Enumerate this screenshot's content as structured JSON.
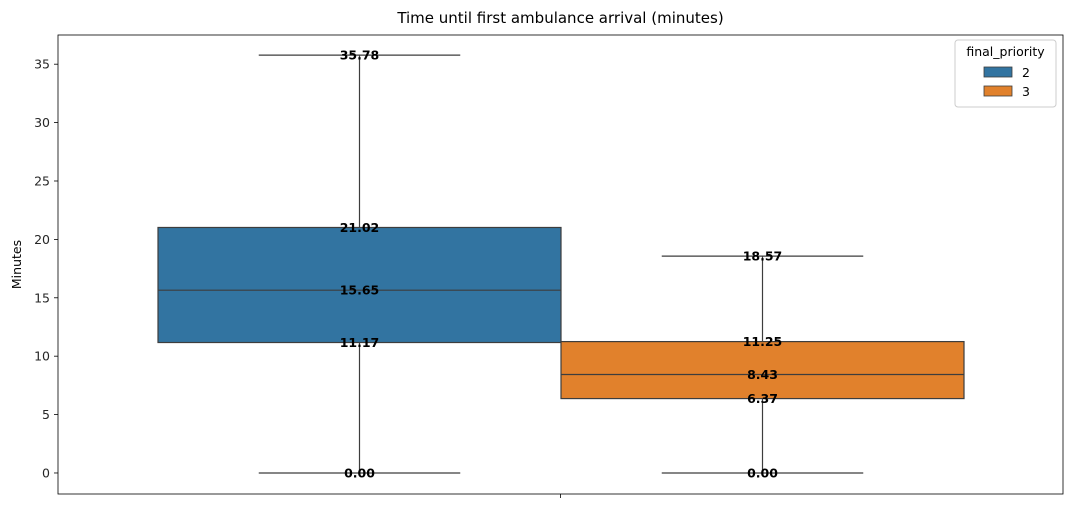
{
  "chart_data": {
    "type": "box",
    "title": "Time until first ambulance arrival (minutes)",
    "xlabel": "",
    "ylabel": "Minutes",
    "ylim": [
      -1.8,
      37.5
    ],
    "yticks": [
      0,
      5,
      10,
      15,
      20,
      25,
      30,
      35
    ],
    "grid": false,
    "legend": {
      "title": "final_priority",
      "placement": "top-right"
    },
    "series": [
      {
        "name": "2",
        "color": "#3274a1",
        "whisker_low": 0.0,
        "q1": 11.17,
        "median": 15.65,
        "q3": 21.02,
        "whisker_high": 35.78,
        "labels": [
          "35.78",
          "21.02",
          "15.65",
          "11.17",
          "0.00"
        ]
      },
      {
        "name": "3",
        "color": "#e1812c",
        "whisker_low": 0.0,
        "q1": 6.37,
        "median": 8.43,
        "q3": 11.25,
        "whisker_high": 18.57,
        "labels": [
          "18.57",
          "11.25",
          "8.43",
          "6.37",
          "0.00"
        ]
      }
    ]
  }
}
